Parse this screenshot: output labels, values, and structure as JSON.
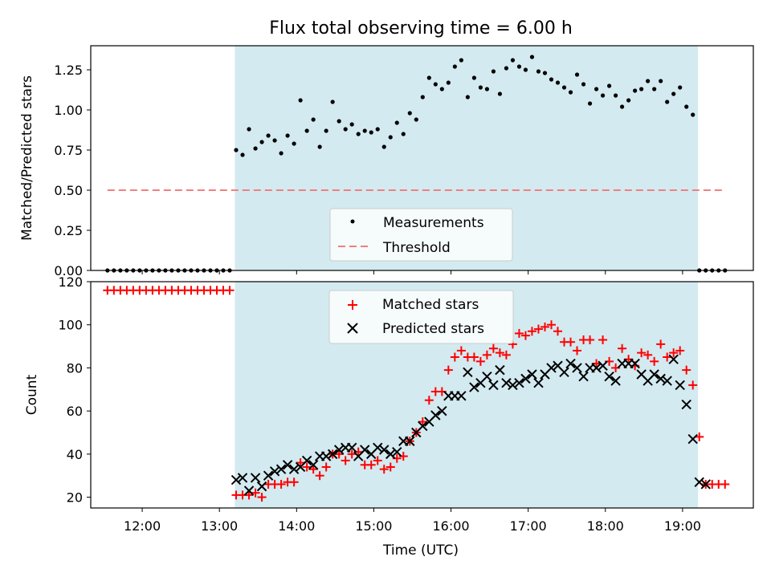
{
  "chart_data": [
    {
      "type": "scatter",
      "title": "Flux total observing time = 6.00 h",
      "xlabel": "",
      "ylabel": "Matched/Predicted stars",
      "ylim": [
        0,
        1.4
      ],
      "xlim": [
        "11:20",
        "19:55"
      ],
      "yticks": [
        "0.00",
        "0.25",
        "0.50",
        "0.75",
        "1.00",
        "1.25"
      ],
      "shaded_span": [
        "13:12",
        "19:12"
      ],
      "shade_color": "#d3eaf0",
      "legend_position": "lower-center",
      "series": [
        {
          "name": "Measurements",
          "marker": "dot",
          "color": "#000000",
          "x": [
            "11:33",
            "11:38",
            "11:43",
            "11:48",
            "11:53",
            "11:58",
            "12:03",
            "12:08",
            "12:13",
            "12:18",
            "12:23",
            "12:28",
            "12:33",
            "12:38",
            "12:43",
            "12:48",
            "12:53",
            "12:58",
            "13:03",
            "13:08",
            "13:13",
            "13:18",
            "13:23",
            "13:28",
            "13:33",
            "13:38",
            "13:43",
            "13:48",
            "13:53",
            "13:58",
            "14:03",
            "14:08",
            "14:13",
            "14:18",
            "14:23",
            "14:28",
            "14:33",
            "14:38",
            "14:43",
            "14:48",
            "14:53",
            "14:58",
            "15:03",
            "15:08",
            "15:13",
            "15:18",
            "15:23",
            "15:28",
            "15:33",
            "15:38",
            "15:43",
            "15:48",
            "15:53",
            "15:58",
            "16:03",
            "16:08",
            "16:13",
            "16:18",
            "16:23",
            "16:28",
            "16:33",
            "16:38",
            "16:43",
            "16:48",
            "16:53",
            "16:58",
            "17:03",
            "17:08",
            "17:13",
            "17:18",
            "17:23",
            "17:28",
            "17:33",
            "17:38",
            "17:43",
            "17:48",
            "17:53",
            "17:58",
            "18:03",
            "18:08",
            "18:13",
            "18:18",
            "18:23",
            "18:28",
            "18:33",
            "18:38",
            "18:43",
            "18:48",
            "18:53",
            "18:58",
            "19:03",
            "19:08",
            "19:13",
            "19:18",
            "19:23",
            "19:28",
            "19:33"
          ],
          "y": [
            0,
            0,
            0,
            0,
            0,
            0,
            0,
            0,
            0,
            0,
            0,
            0,
            0,
            0,
            0,
            0,
            0,
            0,
            0,
            0,
            0.75,
            0.72,
            0.88,
            0.76,
            0.8,
            0.84,
            0.81,
            0.73,
            0.84,
            0.79,
            1.06,
            0.87,
            0.94,
            0.77,
            0.87,
            1.05,
            0.93,
            0.88,
            0.91,
            0.85,
            0.87,
            0.86,
            0.88,
            0.77,
            0.83,
            0.92,
            0.85,
            0.98,
            0.94,
            1.08,
            1.2,
            1.16,
            1.13,
            1.17,
            1.27,
            1.31,
            1.08,
            1.2,
            1.14,
            1.13,
            1.24,
            1.1,
            1.26,
            1.31,
            1.27,
            1.25,
            1.33,
            1.24,
            1.23,
            1.19,
            1.17,
            1.14,
            1.11,
            1.22,
            1.16,
            1.04,
            1.13,
            1.09,
            1.15,
            1.09,
            1.02,
            1.06,
            1.12,
            1.13,
            1.18,
            1.13,
            1.18,
            1.05,
            1.1,
            1.14,
            1.02,
            0.97,
            0,
            0,
            0,
            0,
            0
          ]
        },
        {
          "name": "Threshold",
          "marker": "dashed-line",
          "color": "#f08080",
          "x": [
            "11:33",
            "19:33"
          ],
          "y": [
            0.5,
            0.5
          ]
        }
      ]
    },
    {
      "type": "scatter",
      "title": "",
      "xlabel": "Time (UTC)",
      "ylabel": "Count",
      "ylim": [
        15,
        120
      ],
      "xlim": [
        "11:20",
        "19:55"
      ],
      "yticks": [
        "20",
        "40",
        "60",
        "80",
        "100",
        "120"
      ],
      "xticks": [
        "12:00",
        "13:00",
        "14:00",
        "15:00",
        "16:00",
        "17:00",
        "18:00",
        "19:00"
      ],
      "shaded_span": [
        "13:12",
        "19:12"
      ],
      "shade_color": "#d3eaf0",
      "legend_position": "top-center",
      "series": [
        {
          "name": "Matched stars",
          "marker": "plus",
          "color": "#ff0000",
          "x": [
            "11:33",
            "11:38",
            "11:43",
            "11:48",
            "11:53",
            "11:58",
            "12:03",
            "12:08",
            "12:13",
            "12:18",
            "12:23",
            "12:28",
            "12:33",
            "12:38",
            "12:43",
            "12:48",
            "12:53",
            "12:58",
            "13:03",
            "13:08",
            "13:13",
            "13:18",
            "13:23",
            "13:28",
            "13:33",
            "13:38",
            "13:43",
            "13:48",
            "13:53",
            "13:58",
            "14:03",
            "14:08",
            "14:13",
            "14:18",
            "14:23",
            "14:28",
            "14:33",
            "14:38",
            "14:43",
            "14:48",
            "14:53",
            "14:58",
            "15:03",
            "15:08",
            "15:13",
            "15:18",
            "15:23",
            "15:28",
            "15:33",
            "15:38",
            "15:43",
            "15:48",
            "15:53",
            "15:58",
            "16:03",
            "16:08",
            "16:13",
            "16:18",
            "16:23",
            "16:28",
            "16:33",
            "16:38",
            "16:43",
            "16:48",
            "16:53",
            "16:58",
            "17:03",
            "17:08",
            "17:13",
            "17:18",
            "17:23",
            "17:28",
            "17:33",
            "17:38",
            "17:43",
            "17:48",
            "17:53",
            "17:58",
            "18:03",
            "18:08",
            "18:13",
            "18:18",
            "18:23",
            "18:28",
            "18:33",
            "18:38",
            "18:43",
            "18:48",
            "18:53",
            "18:58",
            "19:03",
            "19:08",
            "19:13",
            "19:18",
            "19:23",
            "19:28",
            "19:33"
          ],
          "y": [
            116,
            116,
            116,
            116,
            116,
            116,
            116,
            116,
            116,
            116,
            116,
            116,
            116,
            116,
            116,
            116,
            116,
            116,
            116,
            116,
            21,
            21,
            21,
            22,
            20,
            26,
            26,
            26,
            27,
            27,
            36,
            34,
            33,
            30,
            34,
            40,
            40,
            37,
            40,
            41,
            35,
            35,
            37,
            33,
            34,
            38,
            39,
            46,
            50,
            55,
            65,
            69,
            69,
            79,
            85,
            88,
            85,
            85,
            83,
            86,
            89,
            87,
            86,
            91,
            96,
            95,
            97,
            98,
            99,
            100,
            97,
            92,
            92,
            88,
            93,
            93,
            82,
            93,
            83,
            80,
            89,
            84,
            81,
            87,
            86,
            83,
            91,
            85,
            87,
            88,
            79,
            72,
            48,
            26,
            26,
            26,
            26
          ]
        },
        {
          "name": "Predicted stars",
          "marker": "x",
          "color": "#000000",
          "x": [
            "13:13",
            "13:18",
            "13:23",
            "13:28",
            "13:33",
            "13:38",
            "13:43",
            "13:48",
            "13:53",
            "13:58",
            "14:03",
            "14:08",
            "14:13",
            "14:18",
            "14:23",
            "14:28",
            "14:33",
            "14:38",
            "14:43",
            "14:48",
            "14:53",
            "14:58",
            "15:03",
            "15:08",
            "15:13",
            "15:18",
            "15:23",
            "15:28",
            "15:33",
            "15:38",
            "15:43",
            "15:48",
            "15:53",
            "15:58",
            "16:03",
            "16:08",
            "16:13",
            "16:18",
            "16:23",
            "16:28",
            "16:33",
            "16:38",
            "16:43",
            "16:48",
            "16:53",
            "16:58",
            "17:03",
            "17:08",
            "17:13",
            "17:18",
            "17:23",
            "17:28",
            "17:33",
            "17:38",
            "17:43",
            "17:48",
            "17:53",
            "17:58",
            "18:03",
            "18:08",
            "18:13",
            "18:18",
            "18:23",
            "18:28",
            "18:33",
            "18:38",
            "18:43",
            "18:48",
            "18:53",
            "18:58",
            "19:03",
            "19:08",
            "19:13",
            "19:18"
          ],
          "y": [
            28,
            29,
            23,
            29,
            25,
            30,
            32,
            33,
            35,
            33,
            34,
            37,
            35,
            39,
            39,
            40,
            42,
            43,
            43,
            39,
            42,
            40,
            43,
            42,
            40,
            41,
            46,
            46,
            50,
            53,
            55,
            58,
            60,
            67,
            67,
            67,
            78,
            71,
            73,
            76,
            72,
            79,
            73,
            72,
            73,
            75,
            77,
            73,
            77,
            80,
            81,
            78,
            82,
            80,
            76,
            80,
            80,
            81,
            76,
            74,
            82,
            82,
            82,
            77,
            74,
            77,
            75,
            74,
            84,
            72,
            63,
            47,
            27,
            26
          ]
        }
      ]
    }
  ]
}
